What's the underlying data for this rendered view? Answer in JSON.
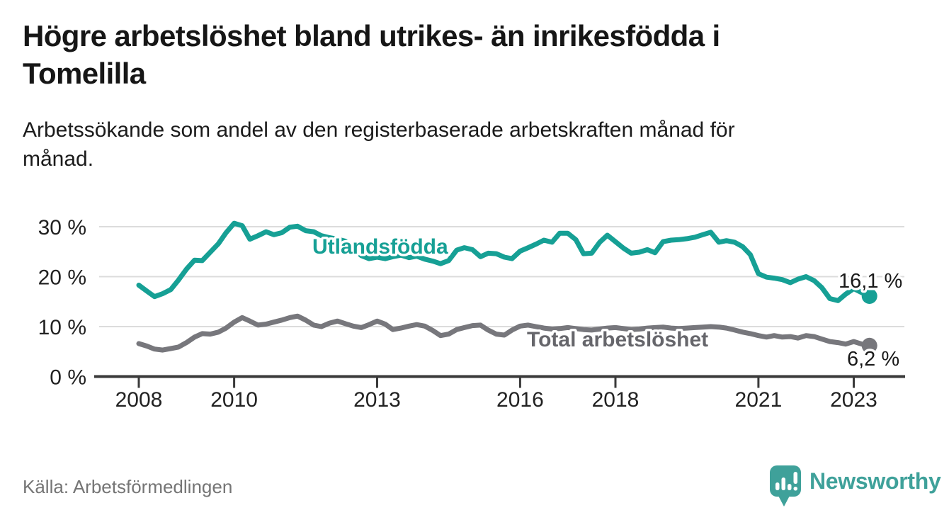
{
  "header": {
    "title_lines": [
      "Högre arbetslöshet bland utrikes- än inrikesfödda i",
      "Tomelilla"
    ],
    "subtitle_lines": [
      "Arbetssökande som andel av den registerbaserade arbetskraften månad för",
      "månad."
    ]
  },
  "chart_data": {
    "type": "line",
    "title": "Högre arbetslöshet bland utrikes- än inrikesfödda i Tomelilla",
    "subtitle": "Arbetssökande som andel av den registerbaserade arbetskraften månad för månad.",
    "xlabel": "",
    "ylabel": "",
    "unit": "%",
    "grid": "horizontal",
    "legend": "inline-labels",
    "x_axis": {
      "range": [
        2007.15,
        2024.05
      ],
      "ticks": [
        {
          "value": 2008,
          "label": "2008"
        },
        {
          "value": 2010,
          "label": "2010"
        },
        {
          "value": 2013,
          "label": "2013"
        },
        {
          "value": 2016,
          "label": "2016"
        },
        {
          "value": 2018,
          "label": "2018"
        },
        {
          "value": 2021,
          "label": "2021"
        },
        {
          "value": 2023,
          "label": "2023"
        }
      ]
    },
    "y_axis": {
      "range": [
        0,
        32.5
      ],
      "ticks": [
        {
          "value": 0,
          "label": "0 %"
        },
        {
          "value": 10,
          "label": "10 %"
        },
        {
          "value": 20,
          "label": "20 %"
        },
        {
          "value": 30,
          "label": "30 %"
        }
      ]
    },
    "x": [
      2008,
      2008.17,
      2008.33,
      2008.5,
      2008.67,
      2008.83,
      2009,
      2009.17,
      2009.33,
      2009.5,
      2009.67,
      2009.83,
      2010,
      2010.17,
      2010.33,
      2010.5,
      2010.67,
      2010.83,
      2011,
      2011.17,
      2011.33,
      2011.5,
      2011.67,
      2011.83,
      2012,
      2012.17,
      2012.33,
      2012.5,
      2012.67,
      2012.83,
      2013,
      2013.17,
      2013.33,
      2013.5,
      2013.67,
      2013.83,
      2014,
      2014.17,
      2014.33,
      2014.5,
      2014.67,
      2014.83,
      2015,
      2015.17,
      2015.33,
      2015.5,
      2015.67,
      2015.83,
      2016,
      2016.17,
      2016.33,
      2016.5,
      2016.67,
      2016.83,
      2017,
      2017.17,
      2017.33,
      2017.5,
      2017.67,
      2017.83,
      2018,
      2018.17,
      2018.33,
      2018.5,
      2018.67,
      2018.83,
      2019,
      2019.17,
      2019.33,
      2019.5,
      2019.67,
      2019.83,
      2020,
      2020.17,
      2020.33,
      2020.5,
      2020.67,
      2020.83,
      2021,
      2021.17,
      2021.33,
      2021.5,
      2021.67,
      2021.83,
      2022,
      2022.17,
      2022.33,
      2022.5,
      2022.67,
      2022.83,
      2023,
      2023.17,
      2023.33
    ],
    "series": [
      {
        "name": "Total arbetslöshet",
        "color": "#77777c",
        "label_color": "#66666b",
        "end_value": 6.2,
        "end_label": "6,2 %",
        "values": [
          6.6,
          6.1,
          5.5,
          5.3,
          5.6,
          5.9,
          6.8,
          7.9,
          8.6,
          8.5,
          8.9,
          9.7,
          10.9,
          11.8,
          11.1,
          10.3,
          10.5,
          10.9,
          11.3,
          11.8,
          12.1,
          11.3,
          10.3,
          10.0,
          10.7,
          11.1,
          10.6,
          10.1,
          9.8,
          10.4,
          11.1,
          10.5,
          9.4,
          9.7,
          10.1,
          10.4,
          10.1,
          9.2,
          8.2,
          8.5,
          9.4,
          9.8,
          10.2,
          10.3,
          9.3,
          8.5,
          8.3,
          9.3,
          10.1,
          10.3,
          10.0,
          9.7,
          9.5,
          9.6,
          9.8,
          9.6,
          9.4,
          9.3,
          9.5,
          9.7,
          9.8,
          9.6,
          9.4,
          9.5,
          9.7,
          9.8,
          9.9,
          9.7,
          9.6,
          9.7,
          9.8,
          9.9,
          10.0,
          9.9,
          9.7,
          9.3,
          8.9,
          8.6,
          8.2,
          7.9,
          8.2,
          7.9,
          8.0,
          7.7,
          8.2,
          8.0,
          7.5,
          7.0,
          6.8,
          6.5,
          7.0,
          6.5,
          6.2
        ]
      },
      {
        "name": "Utlandsfödda",
        "color": "#16a095",
        "label_color": "#16a095",
        "end_value": 16.1,
        "end_label": "16,1 %",
        "values": [
          18.3,
          17.1,
          16.0,
          16.6,
          17.4,
          19.3,
          21.5,
          23.3,
          23.2,
          24.9,
          26.6,
          28.8,
          30.7,
          30.2,
          27.5,
          28.2,
          29.0,
          28.4,
          28.8,
          29.9,
          30.1,
          29.2,
          29.0,
          28.2,
          27.8,
          27.5,
          27.1,
          25.7,
          24.2,
          23.6,
          23.9,
          23.6,
          24.0,
          24.3,
          23.8,
          24.1,
          23.5,
          23.1,
          22.6,
          23.2,
          25.3,
          25.8,
          25.4,
          24.0,
          24.7,
          24.6,
          23.9,
          23.6,
          25.1,
          25.8,
          26.5,
          27.3,
          26.9,
          28.7,
          28.7,
          27.4,
          24.6,
          24.7,
          26.9,
          28.3,
          27.0,
          25.7,
          24.7,
          24.9,
          25.4,
          24.8,
          27.0,
          27.3,
          27.4,
          27.6,
          27.9,
          28.4,
          28.9,
          26.9,
          27.2,
          26.9,
          26.0,
          24.4,
          20.6,
          19.9,
          19.7,
          19.4,
          18.8,
          19.5,
          20.0,
          19.2,
          17.8,
          15.6,
          15.2,
          16.5,
          17.6,
          16.8,
          16.1
        ]
      }
    ]
  },
  "footer": {
    "source": "Källa: Arbetsförmedlingen",
    "brand": "Newsworthy"
  },
  "colors": {
    "accent_teal": "#16a095",
    "line_gray": "#77777c",
    "gridline": "#dcdcdc",
    "axis": "#3a3a3a",
    "logo_teal": "#3fa19a"
  }
}
